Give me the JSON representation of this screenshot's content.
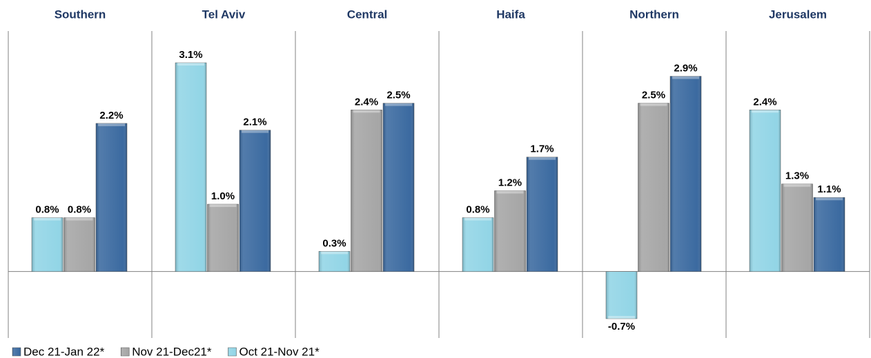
{
  "chart_data": {
    "type": "bar",
    "categories": [
      "Southern",
      "Tel Aviv",
      "Central",
      "Haifa",
      "Northern",
      "Jerusalem"
    ],
    "series": [
      {
        "name": "Dec 21-Jan 22*",
        "color": "#3b6aa0",
        "values": [
          2.2,
          2.1,
          2.5,
          1.7,
          2.9,
          1.1
        ],
        "value_labels": [
          "2.2%",
          "2.1%",
          "2.5%",
          "1.7%",
          "2.9%",
          "1.1%"
        ]
      },
      {
        "name": "Nov 21-Dec21*",
        "color": "#a6a6a6",
        "values": [
          0.8,
          1.0,
          2.4,
          1.2,
          2.5,
          1.3
        ],
        "value_labels": [
          "0.8%",
          "1.0%",
          "2.4%",
          "1.2%",
          "2.5%",
          "1.3%"
        ]
      },
      {
        "name": "Oct 21-Nov 21*",
        "color": "#92d5e6",
        "values": [
          0.8,
          3.1,
          0.3,
          0.8,
          -0.7,
          2.4
        ],
        "value_labels": [
          "0.8%",
          "3.1%",
          "0.3%",
          "0.8%",
          "-0.7%",
          "2.4%"
        ]
      }
    ],
    "legend": "bottom"
  }
}
